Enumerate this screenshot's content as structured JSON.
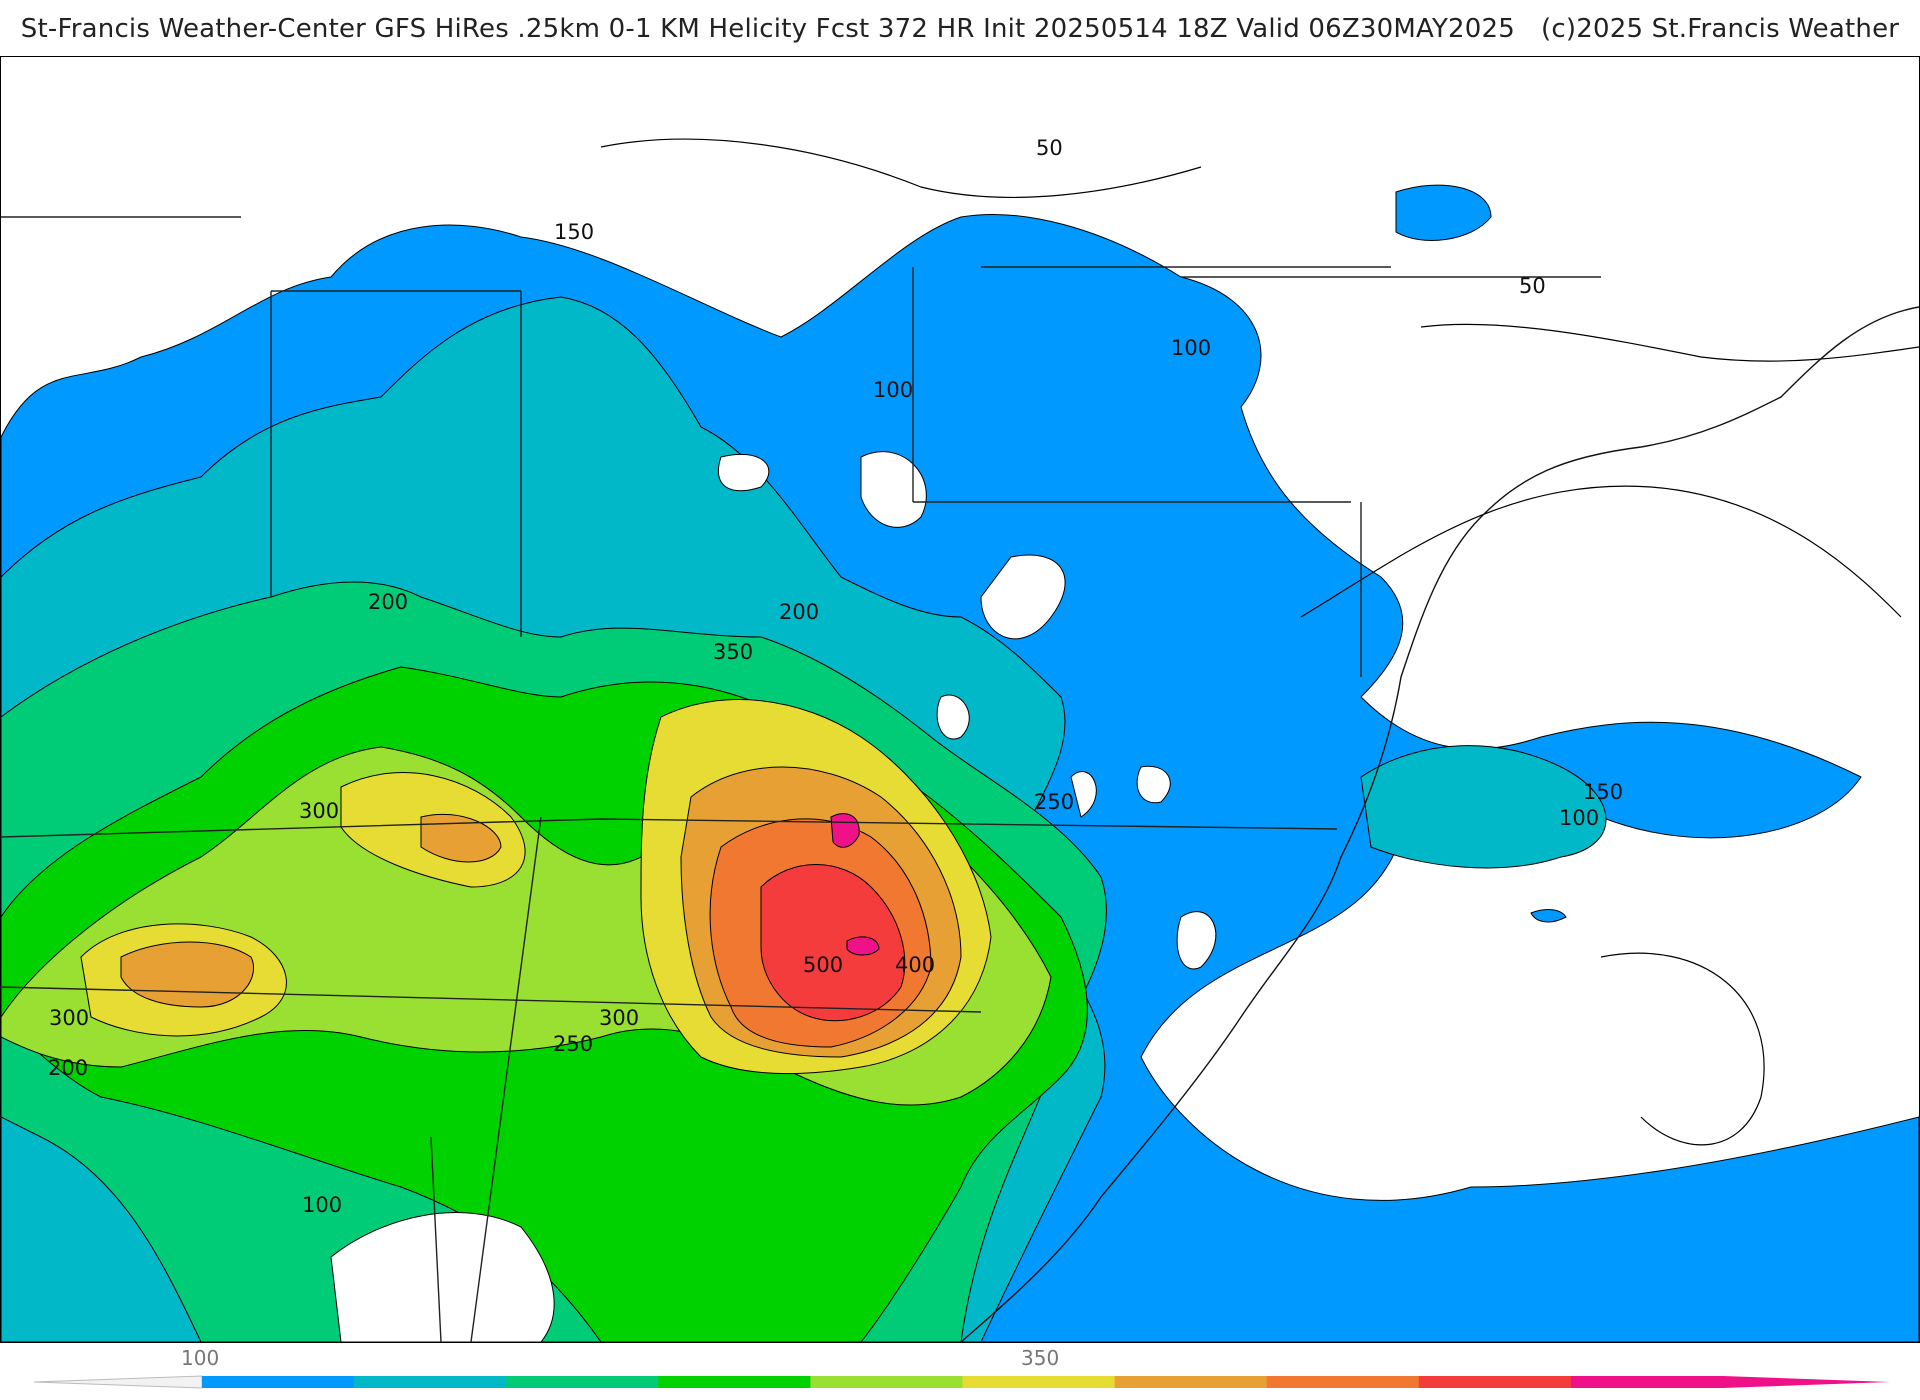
{
  "header": {
    "title": "St-Francis Weather-Center GFS HiRes .25km 0-1 KM Helicity Fcst 372 HR Init 20250514 18Z  Valid 06Z30MAY2025",
    "copyright": "(c)2025 St.Francis Weather"
  },
  "palette": {
    "c100": "#0099ff",
    "c150": "#00b8c8",
    "c200": "#00cc77",
    "c250": "#00d200",
    "c300": "#99e033",
    "c350": "#e6dc33",
    "c400": "#e6a033",
    "c450": "#f07830",
    "c500": "#f53c3c",
    "c550": "#ee1188",
    "ocean_line": "#000000",
    "county_line": "#9a9a9a"
  },
  "contour_labels": [
    {
      "text": "50",
      "id": "label-50-north"
    },
    {
      "text": "50",
      "id": "label-50-northeast"
    },
    {
      "text": "150",
      "id": "label-150-north"
    },
    {
      "text": "100",
      "id": "label-100-ny"
    },
    {
      "text": "100",
      "id": "label-100-pa"
    },
    {
      "text": "200",
      "id": "label-200-west"
    },
    {
      "text": "200",
      "id": "label-200-central"
    },
    {
      "text": "350",
      "id": "label-350"
    },
    {
      "text": "300",
      "id": "label-300-west"
    },
    {
      "text": "250",
      "id": "label-250-east"
    },
    {
      "text": "150",
      "id": "label-150-ocean"
    },
    {
      "text": "100",
      "id": "label-100-ocean"
    },
    {
      "text": "500",
      "id": "label-500"
    },
    {
      "text": "400",
      "id": "label-400"
    },
    {
      "text": "300",
      "id": "label-300-southwest"
    },
    {
      "text": "300",
      "id": "label-300-south"
    },
    {
      "text": "250",
      "id": "label-250-south"
    },
    {
      "text": "200",
      "id": "label-200-southwest"
    },
    {
      "text": "100",
      "id": "label-100-south"
    }
  ],
  "colorbar": {
    "tick_labels": [
      "100",
      "350"
    ],
    "bins": [
      "#0099ff",
      "#00b8c8",
      "#00cc77",
      "#00d200",
      "#99e033",
      "#e6dc33",
      "#e6a033",
      "#f07830",
      "#f53c3c",
      "#ee1188"
    ]
  }
}
